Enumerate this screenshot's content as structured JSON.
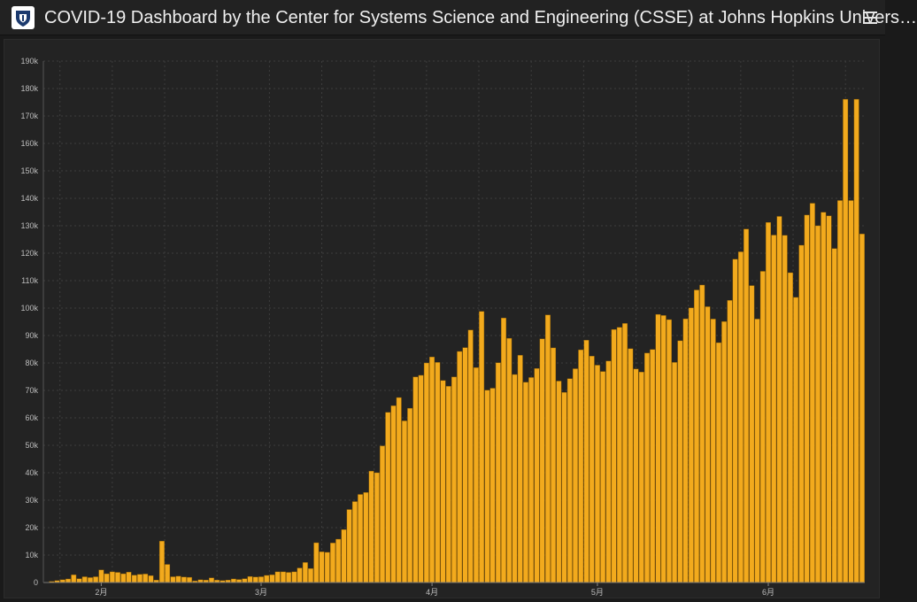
{
  "header": {
    "title": "COVID-19 Dashboard by the Center for Systems Science and Engineering (CSSE) at Johns Hopkins Univers…",
    "logo_icon": "shield-icon",
    "menu_icon": "hamburger-menu-icon"
  },
  "colors": {
    "background": "#1a1a1a",
    "panel": "#232323",
    "bar": "#f2aa1d",
    "bar_edge": "#8a5a00",
    "grid": "#3d3d3d",
    "text": "#bdbdbd"
  },
  "chart_data": {
    "type": "bar",
    "title": "",
    "xlabel": "",
    "ylabel": "",
    "ylim": [
      0,
      190000
    ],
    "yticks": [
      0,
      10000,
      20000,
      30000,
      40000,
      50000,
      60000,
      70000,
      80000,
      90000,
      100000,
      110000,
      120000,
      130000,
      140000,
      150000,
      160000,
      170000,
      180000,
      190000
    ],
    "ytick_labels": [
      "0",
      "10k",
      "20k",
      "30k",
      "40k",
      "50k",
      "60k",
      "70k",
      "80k",
      "90k",
      "100k",
      "110k",
      "120k",
      "130k",
      "140k",
      "150k",
      "160k",
      "170k",
      "180k",
      "190k"
    ],
    "x_start": "2020-01-22",
    "xticks": [
      {
        "label": "2月",
        "date": "2020-02-01"
      },
      {
        "label": "3月",
        "date": "2020-03-01"
      },
      {
        "label": "4月",
        "date": "2020-04-01"
      },
      {
        "label": "5月",
        "date": "2020-05-01"
      },
      {
        "label": "6月",
        "date": "2020-06-01"
      }
    ],
    "grid": true,
    "values": [
      100,
      400,
      700,
      1000,
      1300,
      2800,
      1400,
      2100,
      1800,
      2100,
      4600,
      3200,
      3900,
      3700,
      3200,
      3800,
      2700,
      3000,
      3100,
      2500,
      900,
      15100,
      6600,
      2100,
      2300,
      2000,
      1900,
      600,
      1000,
      900,
      1700,
      900,
      700,
      900,
      1300,
      1100,
      1400,
      2200,
      2000,
      2100,
      2600,
      2800,
      3900,
      3900,
      3700,
      3900,
      5300,
      7300,
      5100,
      14500,
      11200,
      11000,
      14400,
      15800,
      19300,
      26600,
      29500,
      32100,
      32800,
      40600,
      40000,
      49800,
      62000,
      64400,
      67400,
      58900,
      63500,
      74900,
      75500,
      80000,
      82200,
      80200,
      73600,
      71500,
      74900,
      84200,
      85600,
      92000,
      78300,
      98800,
      70100,
      70800,
      80100,
      96400,
      89000,
      75800,
      82800,
      73000,
      74700,
      78000,
      88800,
      97500,
      85500,
      73400,
      69300,
      74300,
      77900,
      84800,
      88300,
      82500,
      79200,
      76900,
      80700,
      92200,
      93000,
      94400,
      85200,
      77800,
      76700,
      83600,
      84900,
      97700,
      97300,
      95800,
      80200,
      88100,
      96100,
      100100,
      106600,
      108400,
      100500,
      96000,
      87400,
      95100,
      102800,
      117800,
      120500,
      128800,
      108200,
      96000,
      113400,
      131200,
      126600,
      133400,
      126500,
      112900,
      103900,
      122900,
      133900,
      138200,
      130000,
      134900,
      133600,
      121700,
      139200,
      176100,
      139200,
      176100,
      127000
    ]
  }
}
